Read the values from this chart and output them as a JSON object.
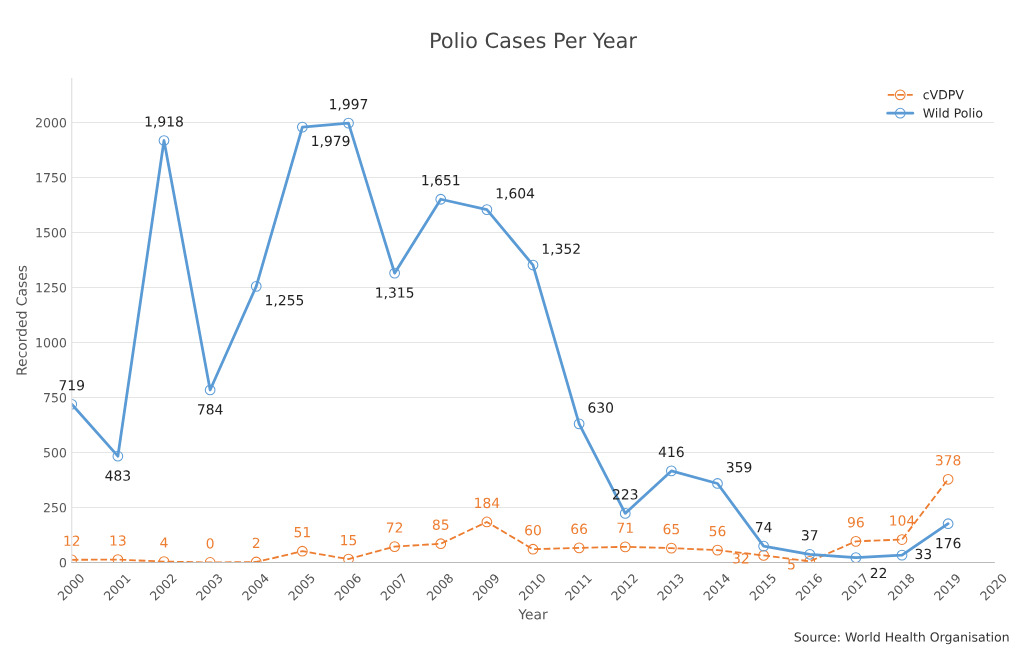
{
  "chart_data": {
    "type": "line",
    "title": "Polio Cases Per Year",
    "xlabel": "Year",
    "ylabel": "Recorded Cases",
    "x": [
      2000,
      2001,
      2002,
      2003,
      2004,
      2005,
      2006,
      2007,
      2008,
      2009,
      2010,
      2011,
      2012,
      2013,
      2014,
      2015,
      2016,
      2017,
      2018,
      2019
    ],
    "series": [
      {
        "name": "cVDPV",
        "color": "#ed7d31",
        "line_style": "dashed",
        "values": [
          12,
          13,
          4,
          0,
          2,
          51,
          15,
          72,
          85,
          184,
          60,
          66,
          71,
          65,
          56,
          32,
          5,
          96,
          104,
          378
        ],
        "value_labels": [
          "12",
          "13",
          "4",
          "0",
          "2",
          "51",
          "15",
          "72",
          "85",
          "184",
          "60",
          "66",
          "71",
          "65",
          "56",
          "32",
          "5",
          "96",
          "104",
          "378"
        ]
      },
      {
        "name": "Wild Polio",
        "color": "#5b9bd5",
        "line_style": "solid",
        "values": [
          719,
          483,
          1918,
          784,
          1255,
          1979,
          1997,
          1315,
          1651,
          1604,
          1352,
          630,
          223,
          416,
          359,
          74,
          37,
          22,
          33,
          176
        ],
        "value_labels": [
          "719",
          "483",
          "1,918",
          "784",
          "1,255",
          "1,979",
          "1,997",
          "1,315",
          "1,651",
          "1,604",
          "1,352",
          "630",
          "223",
          "416",
          "359",
          "74",
          "37",
          "22",
          "33",
          "176"
        ]
      }
    ],
    "xlim": [
      2000,
      2020
    ],
    "xticks": [
      2000,
      2001,
      2002,
      2003,
      2004,
      2005,
      2006,
      2007,
      2008,
      2009,
      2010,
      2011,
      2012,
      2013,
      2014,
      2015,
      2016,
      2017,
      2018,
      2019,
      2020
    ],
    "ylim": [
      0,
      2200
    ],
    "yticks": [
      0,
      250,
      500,
      750,
      1000,
      1250,
      1500,
      1750,
      2000
    ],
    "grid": "y",
    "legend": "top right",
    "marker": "circle",
    "annotations": [
      "Source: World Health Organisation"
    ]
  }
}
